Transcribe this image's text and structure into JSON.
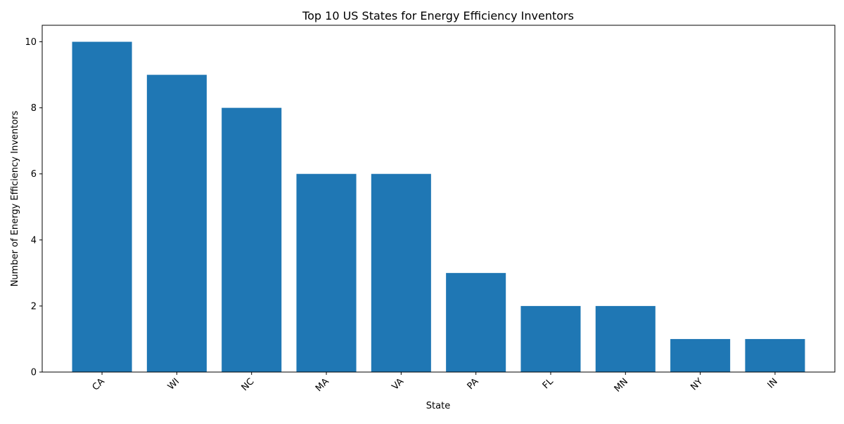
{
  "chart_data": {
    "type": "bar",
    "title": "Top 10 US States for Energy Efficiency Inventors",
    "xlabel": "State",
    "ylabel": "Number of Energy Efficiency Inventors",
    "categories": [
      "CA",
      "WI",
      "NC",
      "MA",
      "VA",
      "PA",
      "FL",
      "MN",
      "NY",
      "IN"
    ],
    "values": [
      10,
      9,
      8,
      6,
      6,
      3,
      2,
      2,
      1,
      1
    ],
    "ylim": [
      0,
      10.5
    ],
    "yticks": [
      "0",
      "2",
      "4",
      "6",
      "8",
      "10"
    ],
    "bar_color": "#1f77b4",
    "grid": false,
    "legend": "none"
  }
}
